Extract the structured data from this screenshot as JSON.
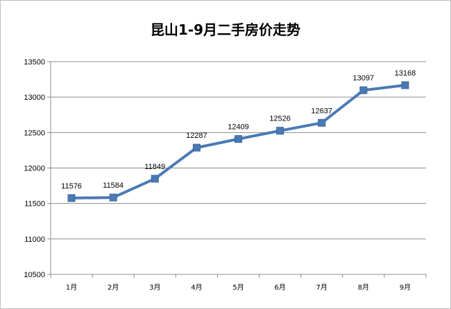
{
  "chart_data": {
    "type": "line",
    "title": "昆山1-9月二手房价走势",
    "categories": [
      "1月",
      "2月",
      "3月",
      "4月",
      "5月",
      "6月",
      "7月",
      "8月",
      "9月"
    ],
    "series": [
      {
        "values": [
          11576,
          11584,
          11849,
          12287,
          12409,
          12526,
          12637,
          13097,
          13168
        ]
      }
    ],
    "ylim": [
      10500,
      13500
    ],
    "yticks": [
      10500,
      11000,
      11500,
      12000,
      12500,
      13000,
      13500
    ],
    "grid": true,
    "data_labels": true,
    "line_color": "#4a7ab5",
    "marker_color": "#4a7ab5",
    "marker": "square"
  }
}
